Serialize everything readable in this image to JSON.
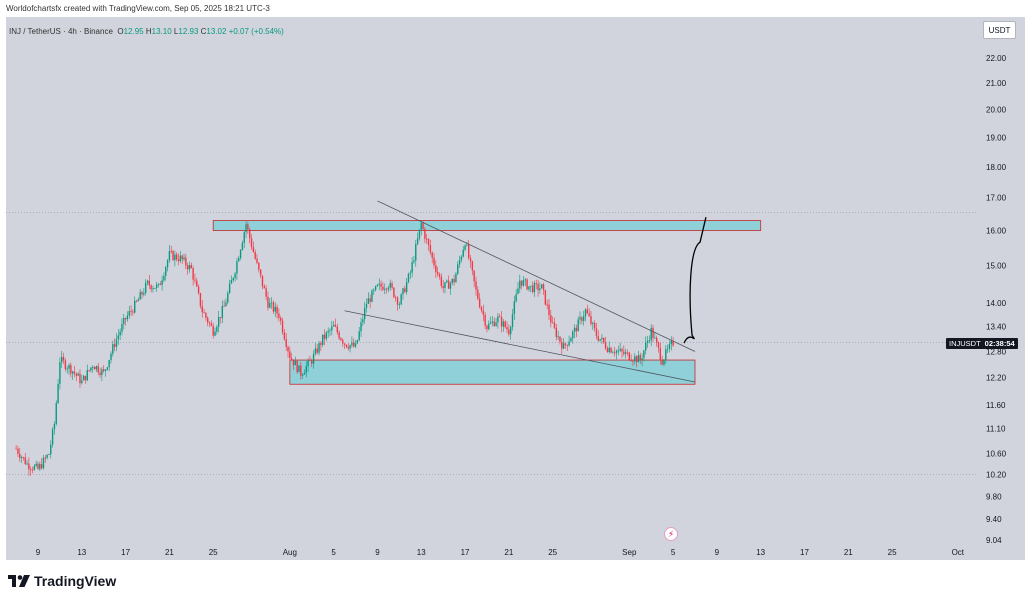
{
  "header": {
    "caption": "Worldofchartsfx created with TradingView.com, Sep 05, 2025 18:21 UTC-3"
  },
  "legend": {
    "symbol": "INJ / TetherUS · 4h · Binance",
    "open_label": "O",
    "open": "12.95",
    "high_label": "H",
    "high": "13.10",
    "low_label": "L",
    "low": "12.93",
    "close_label": "C",
    "close": "13.02",
    "change": "+0.07 (+0.54%)"
  },
  "currency": "USDT",
  "price_tag": {
    "symbol": "INJUSDT",
    "countdown": "02:38:54"
  },
  "brand": "TradingView",
  "colors": {
    "plot_bg": "#d1d4dc",
    "up": "#089981",
    "down": "#f23645",
    "zone_fill": "#8fd0d9",
    "zone_border": "#c62828",
    "trendline": "#50535e",
    "projection": "#000000"
  },
  "chart_data": {
    "type": "candlestick",
    "symbol": "INJ / TetherUS",
    "timeframe": "4h",
    "exchange": "Binance",
    "y_axis": {
      "scale": "log",
      "ticks": [
        "22.00",
        "21.00",
        "20.00",
        "19.00",
        "18.00",
        "17.00",
        "16.00",
        "15.00",
        "14.00",
        "13.40",
        "12.80",
        "12.20",
        "11.60",
        "11.10",
        "10.60",
        "10.20",
        "9.80",
        "9.40",
        "9.04"
      ],
      "range": [
        9.04,
        22.0
      ]
    },
    "x_axis": {
      "ticks": [
        "9",
        "13",
        "17",
        "21",
        "25",
        "Aug",
        "5",
        "9",
        "13",
        "17",
        "21",
        "25",
        "Sep",
        "5",
        "9",
        "13",
        "17",
        "21",
        "25",
        "Oct"
      ]
    },
    "current_price": 13.02,
    "price_path": [
      [
        "Jul 7",
        10.7
      ],
      [
        "Jul 8",
        10.4
      ],
      [
        "Jul 9",
        10.3
      ],
      [
        "Jul 10",
        10.6
      ],
      [
        "Jul 10 12h",
        11.2
      ],
      [
        "Jul 11",
        12.6
      ],
      [
        "Jul 12",
        12.4
      ],
      [
        "Jul 13",
        12.1
      ],
      [
        "Jul 14",
        12.5
      ],
      [
        "Jul 15",
        12.3
      ],
      [
        "Jul 16",
        13.0
      ],
      [
        "Jul 17",
        13.6
      ],
      [
        "Jul 18",
        14.0
      ],
      [
        "Jul 19",
        14.5
      ],
      [
        "Jul 20",
        14.4
      ],
      [
        "Jul 21",
        15.3
      ],
      [
        "Jul 22",
        15.2
      ],
      [
        "Jul 23",
        14.9
      ],
      [
        "Jul 24",
        13.8
      ],
      [
        "Jul 25",
        13.3
      ],
      [
        "Jul 26",
        13.9
      ],
      [
        "Jul 27",
        14.9
      ],
      [
        "Jul 28",
        16.2
      ],
      [
        "Jul 29",
        15.0
      ],
      [
        "Jul 30",
        14.0
      ],
      [
        "Jul 31",
        13.7
      ],
      [
        "Aug 1",
        12.7
      ],
      [
        "Aug 2",
        12.3
      ],
      [
        "Aug 3",
        12.6
      ],
      [
        "Aug 4",
        13.1
      ],
      [
        "Aug 5",
        13.4
      ],
      [
        "Aug 6",
        13.0
      ],
      [
        "Aug 7",
        12.9
      ],
      [
        "Aug 8",
        14.0
      ],
      [
        "Aug 9",
        14.4
      ],
      [
        "Aug 10",
        14.5
      ],
      [
        "Aug 11",
        14.0
      ],
      [
        "Aug 12",
        14.8
      ],
      [
        "Aug 13",
        16.2
      ],
      [
        "Aug 14",
        15.2
      ],
      [
        "Aug 15",
        14.4
      ],
      [
        "Aug 16",
        14.6
      ],
      [
        "Aug 17",
        15.7
      ],
      [
        "Aug 18",
        14.3
      ],
      [
        "Aug 19",
        13.4
      ],
      [
        "Aug 20",
        13.6
      ],
      [
        "Aug 21",
        13.3
      ],
      [
        "Aug 22",
        14.6
      ],
      [
        "Aug 23",
        14.4
      ],
      [
        "Aug 24",
        14.4
      ],
      [
        "Aug 25",
        13.4
      ],
      [
        "Aug 26",
        12.9
      ],
      [
        "Aug 27",
        13.3
      ],
      [
        "Aug 28",
        13.8
      ],
      [
        "Aug 29",
        13.2
      ],
      [
        "Aug 30",
        12.9
      ],
      [
        "Aug 31",
        12.8
      ],
      [
        "Sep 1",
        12.7
      ],
      [
        "Sep 2",
        12.6
      ],
      [
        "Sep 3",
        13.3
      ],
      [
        "Sep 4",
        12.6
      ],
      [
        "Sep 5",
        13.02
      ]
    ],
    "annotations": [
      {
        "kind": "zone",
        "label": "resistance",
        "y_top": 16.3,
        "y_bottom": 16.0,
        "x_start": "Jul 25",
        "x_end": "Sep 13"
      },
      {
        "kind": "zone",
        "label": "support",
        "y_top": 12.6,
        "y_bottom": 12.05,
        "x_start": "Aug 1",
        "x_end": "Sep 7"
      },
      {
        "kind": "trendline",
        "from": [
          "Aug 9",
          16.9
        ],
        "to": [
          "Sep 7",
          12.8
        ]
      },
      {
        "kind": "trendline",
        "from": [
          "Aug 6",
          13.8
        ],
        "to": [
          "Sep 7",
          12.1
        ]
      },
      {
        "kind": "projection",
        "from": [
          "Sep 6",
          13.0
        ],
        "to": [
          "Sep 8",
          16.4
        ]
      }
    ]
  }
}
